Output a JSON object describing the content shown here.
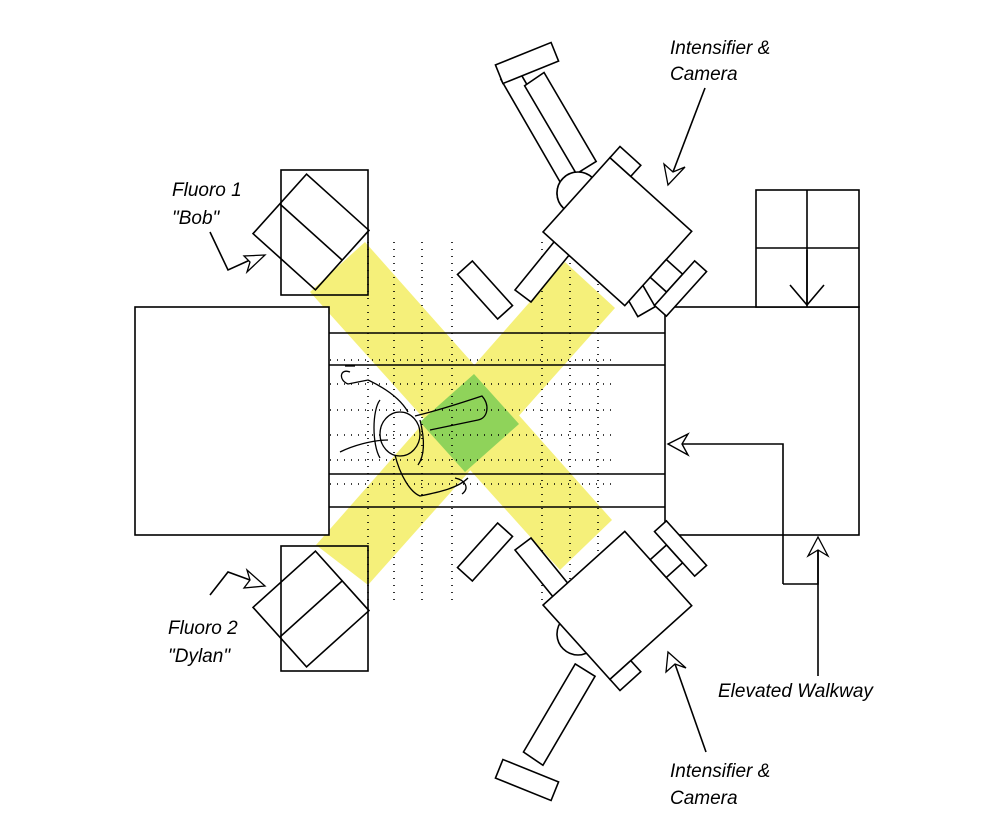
{
  "labels": {
    "fluoro1_line1": "Fluoro 1",
    "fluoro1_line2": "\"Bob\"",
    "fluoro2_line1": "Fluoro 2",
    "fluoro2_line2": "\"Dylan\"",
    "intensifier_top_line1": "Intensifier &",
    "intensifier_top_line2": "Camera",
    "intensifier_bottom_line1": "Intensifier &",
    "intensifier_bottom_line2": "Camera",
    "walkway": "Elevated Walkway"
  },
  "colors": {
    "beam": "#f5f07a",
    "overlap": "#8fd35a",
    "outline": "#000000"
  }
}
